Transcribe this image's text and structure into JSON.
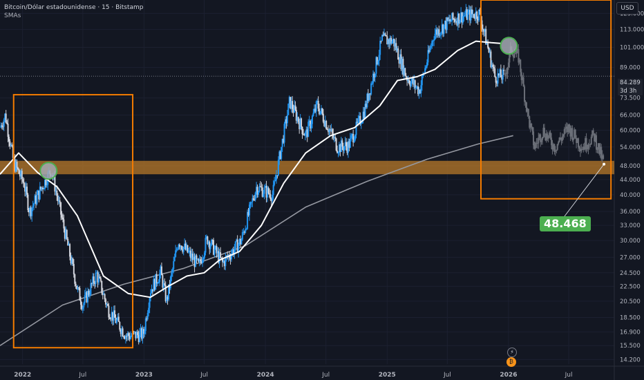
{
  "header": {
    "symbol_title": "Bitcoin/Dólar estadounidense · 15 · Bitstamp",
    "indicator_label": "SMAs"
  },
  "currency_button": "USD",
  "current_price": {
    "value": "84.289",
    "countdown": "3d 3h"
  },
  "target_callout": "48.468",
  "colors": {
    "background": "#131722",
    "candle_up": "#2196f3",
    "candle_down": "#d1d4dc",
    "candle_projected": "#6b6f78",
    "sma_fast": "#ffffff",
    "sma_slow": "#9598a1",
    "box_border": "#f57c00",
    "zone_fill": "#b87a2a",
    "circle_fill": "#a5a9b3",
    "circle_border": "#4caf50",
    "callout_bg": "#4caf50"
  },
  "chart_data": {
    "type": "candlestick",
    "y_scale": "log",
    "ylim": [
      13800,
      136000
    ],
    "y_ticks": [
      "125.000",
      "113.000",
      "101.000",
      "89.000",
      "73.500",
      "66.000",
      "60.000",
      "54.000",
      "48.000",
      "44.000",
      "40.000",
      "36.000",
      "33.000",
      "30.000",
      "27.000",
      "24.500",
      "22.500",
      "20.500",
      "18.500",
      "16.900",
      "15.500",
      "14.200"
    ],
    "x_ticks": [
      "2022",
      "Jul",
      "2023",
      "Jul",
      "2024",
      "Jul",
      "2025",
      "Jul",
      "2026",
      "Jul"
    ],
    "xlim": [
      "2021-10-25",
      "2026-11-15"
    ],
    "price_path": [
      [
        "2021-10-25",
        61000
      ],
      [
        "2021-11-10",
        66000
      ],
      [
        "2021-12-05",
        49000
      ],
      [
        "2022-01-05",
        43000
      ],
      [
        "2022-01-22",
        36000
      ],
      [
        "2022-03-28",
        47000
      ],
      [
        "2022-05-10",
        31000
      ],
      [
        "2022-06-15",
        22000
      ],
      [
        "2022-07-01",
        20000
      ],
      [
        "2022-08-12",
        24300
      ],
      [
        "2022-09-15",
        19500
      ],
      [
        "2022-11-09",
        16500
      ],
      [
        "2022-12-30",
        16600
      ],
      [
        "2023-01-20",
        22000
      ],
      [
        "2023-02-20",
        24500
      ],
      [
        "2023-03-10",
        20500
      ],
      [
        "2023-04-14",
        30000
      ],
      [
        "2023-06-15",
        25500
      ],
      [
        "2023-07-10",
        30500
      ],
      [
        "2023-08-25",
        26000
      ],
      [
        "2023-10-20",
        30000
      ],
      [
        "2023-12-05",
        42000
      ],
      [
        "2024-01-23",
        40000
      ],
      [
        "2024-03-14",
        72000
      ],
      [
        "2024-05-01",
        58000
      ],
      [
        "2024-06-05",
        70500
      ],
      [
        "2024-08-05",
        54000
      ],
      [
        "2024-09-07",
        54500
      ],
      [
        "2024-10-25",
        68000
      ],
      [
        "2024-12-17",
        106000
      ],
      [
        "2025-01-20",
        105000
      ],
      [
        "2025-02-28",
        84000
      ],
      [
        "2025-04-08",
        77000
      ],
      [
        "2025-05-22",
        110000
      ],
      [
        "2025-07-14",
        120000
      ],
      [
        "2025-08-14",
        123000
      ],
      [
        "2025-10-06",
        125000
      ],
      [
        "2025-11-21",
        84000
      ],
      [
        "2025-12-20",
        84289
      ]
    ],
    "projection_path": [
      [
        "2025-12-20",
        84289
      ],
      [
        "2026-01-10",
        100000
      ],
      [
        "2026-01-31",
        95000
      ],
      [
        "2026-02-28",
        66000
      ],
      [
        "2026-03-20",
        54000
      ],
      [
        "2026-04-15",
        60000
      ],
      [
        "2026-05-20",
        54000
      ],
      [
        "2026-07-01",
        61000
      ],
      [
        "2026-08-10",
        54000
      ],
      [
        "2026-09-15",
        58000
      ],
      [
        "2026-10-15",
        48468
      ]
    ],
    "sma_fast": [
      [
        "2021-10-25",
        45500
      ],
      [
        "2021-12-20",
        52000
      ],
      [
        "2022-02-15",
        46000
      ],
      [
        "2022-04-15",
        42000
      ],
      [
        "2022-06-15",
        35000
      ],
      [
        "2022-09-01",
        24000
      ],
      [
        "2022-11-15",
        21500
      ],
      [
        "2023-01-20",
        21000
      ],
      [
        "2023-03-15",
        22500
      ],
      [
        "2023-05-10",
        24000
      ],
      [
        "2023-07-01",
        24500
      ],
      [
        "2023-08-15",
        26500
      ],
      [
        "2023-10-15",
        28000
      ],
      [
        "2023-12-20",
        33000
      ],
      [
        "2024-02-25",
        43000
      ],
      [
        "2024-05-01",
        52000
      ],
      [
        "2024-07-15",
        58000
      ],
      [
        "2024-09-25",
        61000
      ],
      [
        "2024-12-10",
        70000
      ],
      [
        "2025-02-01",
        82000
      ],
      [
        "2025-04-01",
        84000
      ],
      [
        "2025-05-25",
        88000
      ],
      [
        "2025-08-01",
        99000
      ],
      [
        "2025-09-25",
        105000
      ],
      [
        "2025-11-10",
        104000
      ],
      [
        "2025-12-10",
        103500
      ]
    ],
    "sma_slow": [
      [
        "2021-10-25",
        15500
      ],
      [
        "2022-05-01",
        20000
      ],
      [
        "2022-11-01",
        22800
      ],
      [
        "2023-05-01",
        25200
      ],
      [
        "2023-11-01",
        29000
      ],
      [
        "2024-05-01",
        37000
      ],
      [
        "2024-11-01",
        43500
      ],
      [
        "2025-05-01",
        50000
      ],
      [
        "2025-10-01",
        55000
      ],
      [
        "2026-01-15",
        58000
      ]
    ],
    "annotations": {
      "box_left": {
        "from": "2021-12-05",
        "to": "2022-11-28",
        "high": 75000,
        "low": 15300
      },
      "box_right": {
        "from": "2025-10-10",
        "to": "2026-11-05",
        "high": 136000,
        "low": 39000
      },
      "support_zone": {
        "high": 49500,
        "low": 45500
      },
      "circles": [
        {
          "date": "2022-03-20",
          "price": 46500
        },
        {
          "date": "2026-01-02",
          "price": 102000
        }
      ],
      "target": {
        "date": "2026-10-15",
        "price": 48468
      }
    }
  }
}
